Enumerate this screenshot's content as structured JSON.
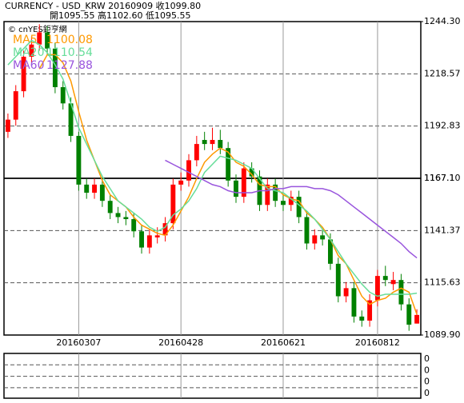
{
  "chart_data": {
    "type": "candlestick",
    "title": "CURRENCY - USD_KRW    20160909    收1099.80",
    "subtitle": "開1095.55    高1102.60    低1095.55",
    "annotation": "© cnYES鉅亨網",
    "categories": [
      null,
      null,
      null,
      null,
      null,
      null,
      null,
      null,
      null,
      "20160307",
      null,
      null,
      null,
      null,
      null,
      null,
      null,
      null,
      null,
      null,
      null,
      null,
      "20160428",
      null,
      null,
      null,
      null,
      null,
      null,
      null,
      null,
      null,
      null,
      null,
      null,
      "20160621",
      null,
      null,
      null,
      null,
      null,
      null,
      null,
      null,
      null,
      null,
      null,
      "20160812",
      null,
      null,
      null,
      null,
      null
    ],
    "open": [
      1190,
      1196,
      1210,
      1227,
      1233,
      1239,
      1231,
      1212,
      1204,
      1188,
      1164,
      1160,
      1164,
      1156,
      1150,
      1148,
      1147,
      1141,
      1133,
      1138,
      1139,
      1145,
      1164,
      1166,
      1176,
      1186,
      1184,
      1186,
      1182,
      1166,
      1158,
      1172,
      1168,
      1154,
      1164,
      1156,
      1154,
      1158,
      1148,
      1135,
      1139,
      1137,
      1125,
      1109,
      1113,
      1099,
      1097,
      1107,
      1119,
      1115,
      1117,
      1105,
      1095.55
    ],
    "high": [
      1199,
      1213,
      1230,
      1237,
      1243,
      1242,
      1234,
      1215,
      1207,
      1190,
      1167,
      1167,
      1167,
      1159,
      1153,
      1151,
      1150,
      1144,
      1142,
      1143,
      1148,
      1167,
      1170,
      1179,
      1188,
      1190,
      1192,
      1191,
      1185,
      1169,
      1175,
      1175,
      1171,
      1167,
      1167,
      1159,
      1161,
      1161,
      1151,
      1142,
      1142,
      1140,
      1128,
      1116,
      1116,
      1102,
      1110,
      1122,
      1124,
      1121,
      1120,
      1108,
      1102.6
    ],
    "low": [
      1187,
      1193,
      1207,
      1224,
      1230,
      1228,
      1209,
      1201,
      1185,
      1161,
      1157,
      1157,
      1153,
      1147,
      1145,
      1144,
      1138,
      1130,
      1130,
      1135,
      1136,
      1142,
      1161,
      1163,
      1173,
      1181,
      1181,
      1179,
      1163,
      1155,
      1155,
      1165,
      1151,
      1151,
      1153,
      1151,
      1151,
      1145,
      1132,
      1132,
      1134,
      1122,
      1106,
      1106,
      1096,
      1094,
      1094,
      1104,
      1114,
      1112,
      1102,
      1092,
      1095.55
    ],
    "close": [
      1196,
      1210,
      1227,
      1233,
      1239,
      1231,
      1212,
      1204,
      1188,
      1164,
      1160,
      1164,
      1156,
      1150,
      1148,
      1147,
      1141,
      1133,
      1139,
      1139,
      1145,
      1164,
      1166,
      1176,
      1184,
      1184,
      1186,
      1182,
      1166,
      1158,
      1172,
      1168,
      1154,
      1164,
      1156,
      1154,
      1158,
      1148,
      1135,
      1139,
      1137,
      1125,
      1109,
      1113,
      1099,
      1097,
      1107,
      1119,
      1117,
      1117,
      1105,
      1095,
      1099.8
    ],
    "up_color": "#ff0000",
    "down_color": "#008000",
    "series": [
      {
        "name": "MA5",
        "color": "#ff9900",
        "values": [
          null,
          null,
          null,
          null,
          1221,
          1228,
          1228,
          1224,
          1215,
          1200,
          1186,
          1176,
          1166,
          1159,
          1156,
          1153,
          1148,
          1144,
          1142,
          1140,
          1139,
          1144,
          1151,
          1158,
          1167,
          1175,
          1179,
          1182,
          1180,
          1175,
          1173,
          1169,
          1164,
          1163,
          1163,
          1159,
          1157,
          1156,
          1150,
          1147,
          1143,
          1137,
          1129,
          1125,
          1117,
          1109,
          1105,
          1107,
          1108,
          1111,
          1113,
          1111,
          1100.08
        ]
      },
      {
        "name": "MA20",
        "color": "#66dd99",
        "values": [
          1223,
          1227,
          1231,
          1235,
          1233,
          1229,
          1223,
          1216,
          1204,
          1192,
          1184,
          1176,
          1168,
          1162,
          1156,
          1153,
          1150,
          1147,
          1143,
          1141,
          1143,
          1149,
          1152,
          1156,
          1162,
          1170,
          1174,
          1178,
          1177,
          1176,
          1174,
          1172,
          1167,
          1162,
          1161,
          1160,
          1157,
          1154,
          1151,
          1147,
          1142,
          1137,
          1131,
          1125,
          1120,
          1115,
          1111,
          1109,
          1110,
          1110,
          1110,
          1110,
          1110.54
        ]
      },
      {
        "name": "MA60",
        "color": "#9955dd",
        "values": [
          null,
          null,
          null,
          null,
          null,
          null,
          null,
          null,
          null,
          null,
          null,
          null,
          null,
          null,
          null,
          null,
          null,
          null,
          null,
          null,
          1176,
          1174,
          1172,
          1170,
          1168,
          1166,
          1164,
          1163,
          1161,
          1160,
          1160,
          1160,
          1161,
          1161,
          1162,
          1162,
          1163,
          1163,
          1163,
          1162,
          1162,
          1161,
          1159,
          1156,
          1153,
          1150,
          1147,
          1144,
          1141,
          1138,
          1135,
          1131,
          1127.88
        ]
      }
    ],
    "ylim": [
      1089.9,
      1244.3
    ],
    "yticks": [
      {
        "value": 1089.9,
        "label": "1089.90"
      },
      1115.63,
      1141.37,
      1167.1,
      {
        "value": 1167.1,
        "label": "1167.10"
      },
      1192.83,
      1218.57,
      {
        "value": 1244.3,
        "label": "1244.30"
      }
    ],
    "volume_yticks": [
      0,
      0,
      0,
      0
    ]
  }
}
